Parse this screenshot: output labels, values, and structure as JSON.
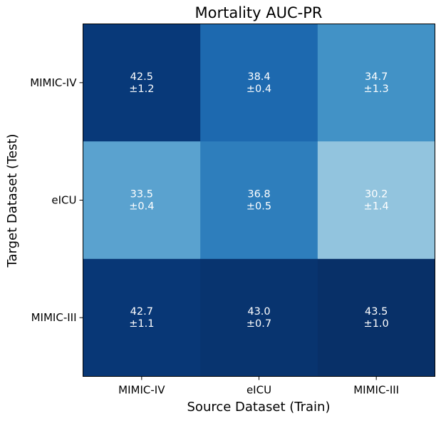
{
  "chart_data": {
    "type": "heatmap",
    "title": "Mortality AUC-PR",
    "xlabel": "Source Dataset (Train)",
    "ylabel": "Target Dataset (Test)",
    "x_categories": [
      "MIMIC-IV",
      "eICU",
      "MIMIC-III"
    ],
    "y_categories": [
      "MIMIC-IV",
      "eICU",
      "MIMIC-III"
    ],
    "values": [
      [
        42.5,
        38.4,
        34.7
      ],
      [
        33.5,
        36.8,
        30.2
      ],
      [
        42.7,
        43.0,
        43.5
      ]
    ],
    "errors": [
      [
        1.2,
        0.4,
        1.3
      ],
      [
        0.4,
        0.5,
        1.4
      ],
      [
        1.1,
        0.7,
        1.0
      ]
    ],
    "cell_labels": [
      [
        [
          "42.5",
          "±1.2"
        ],
        [
          "38.4",
          "±0.4"
        ],
        [
          "34.7",
          "±1.3"
        ]
      ],
      [
        [
          "33.5",
          "±0.4"
        ],
        [
          "36.8",
          "±0.5"
        ],
        [
          "30.2",
          "±1.4"
        ]
      ],
      [
        [
          "42.7",
          "±1.1"
        ],
        [
          "43.0",
          "±0.7"
        ],
        [
          "43.5",
          "±1.0"
        ]
      ]
    ],
    "colormap": "Blues",
    "colors": {
      "cells": [
        [
          "#083979",
          "#1d69af",
          "#4292c6"
        ],
        [
          "#5aa2cf",
          "#2e7ebc",
          "#92c4de"
        ],
        [
          "#083776",
          "#08346f",
          "#083068"
        ]
      ],
      "label_text": "#ffffff",
      "axis": "#000000"
    }
  }
}
